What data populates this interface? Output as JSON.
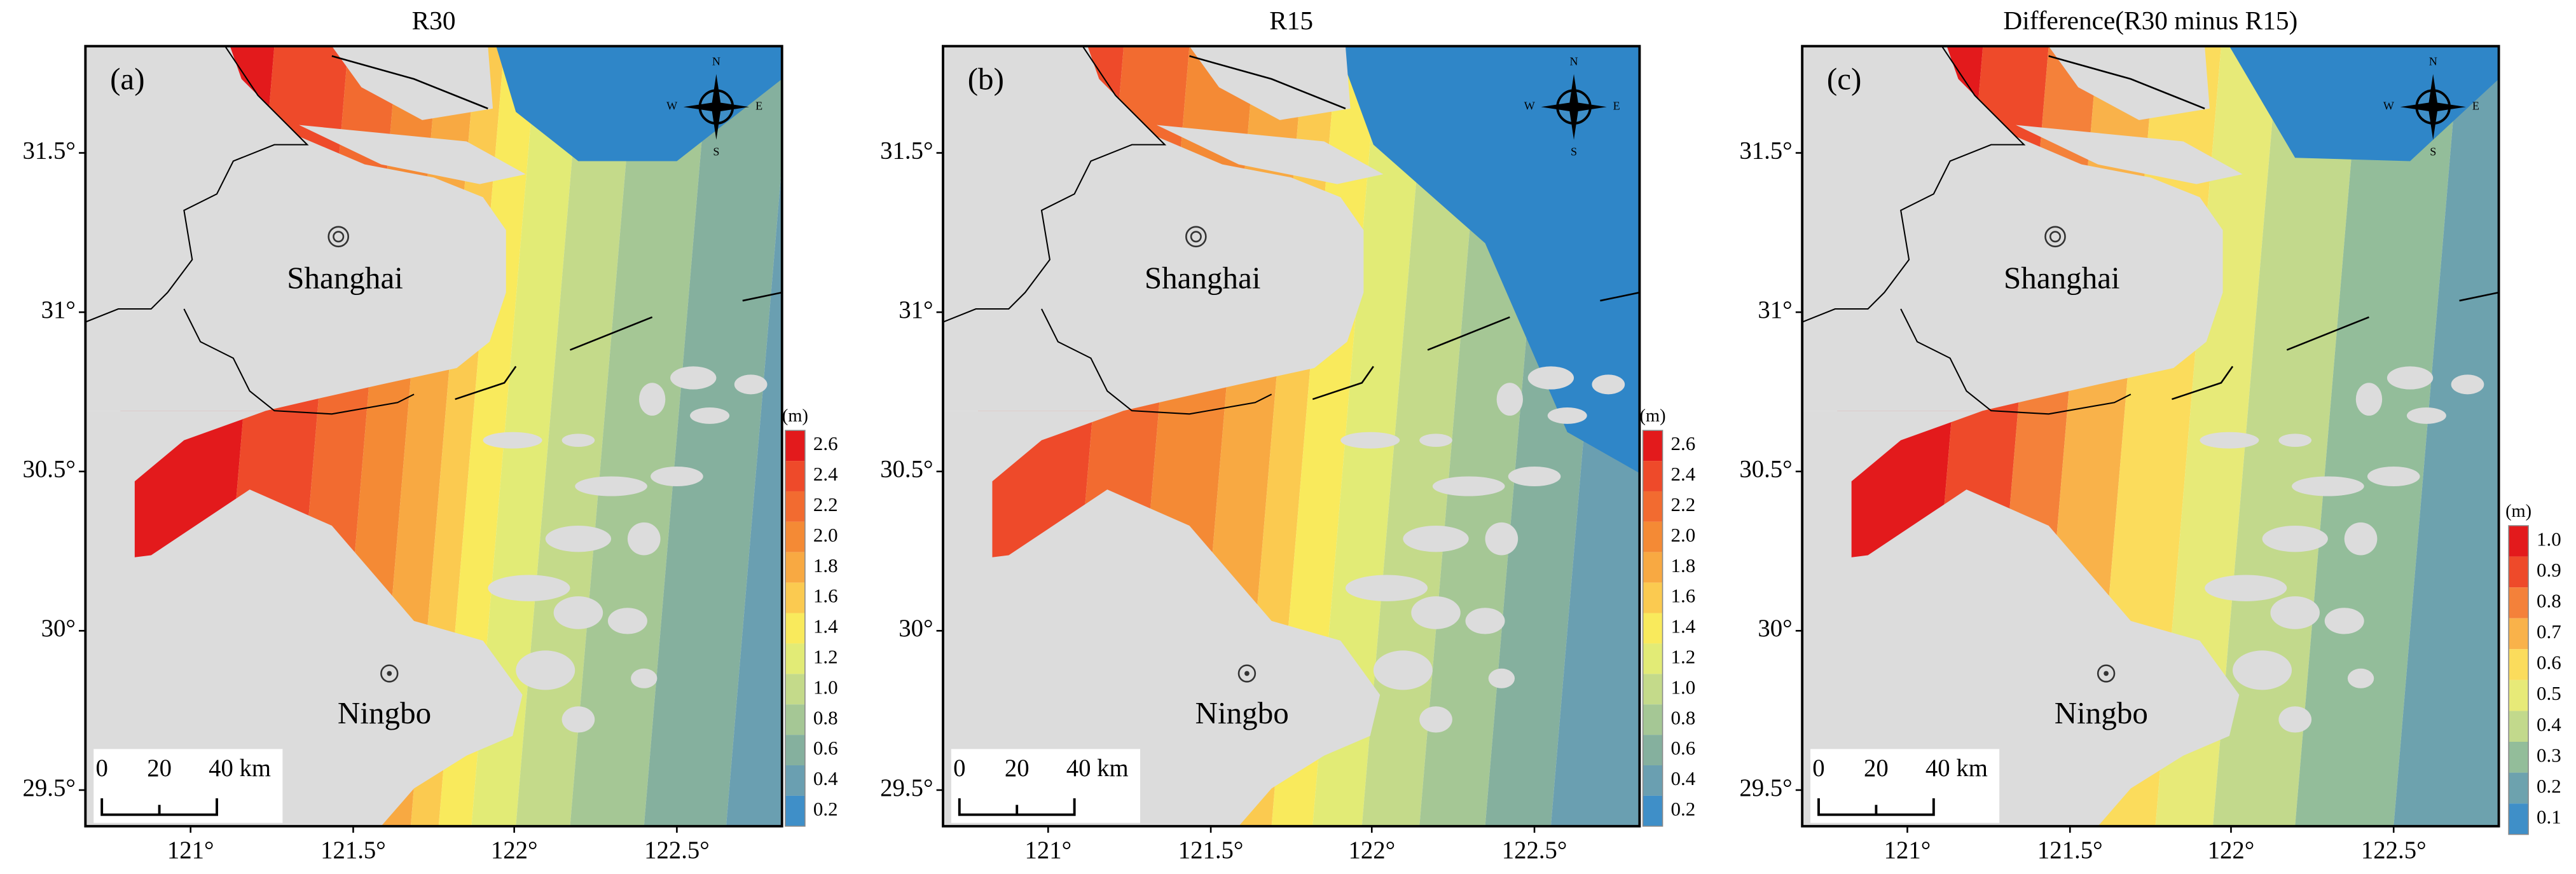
{
  "panels": [
    {
      "title": "R30",
      "label": "(a)",
      "cities": [
        "Shanghai",
        "Ningbo"
      ],
      "scale_bar": [
        "0",
        "20",
        "40 km"
      ],
      "compass": [
        "N",
        "S",
        "E",
        "W"
      ],
      "colorbar": {
        "unit": "(m)",
        "labels": [
          "2.6",
          "2.4",
          "2.2",
          "2.0",
          "1.8",
          "1.6",
          "1.4",
          "1.2",
          "1.0",
          "0.8",
          "0.6",
          "0.4",
          "0.2"
        ]
      }
    },
    {
      "title": "R15",
      "label": "(b)",
      "cities": [
        "Shanghai",
        "Ningbo"
      ],
      "scale_bar": [
        "0",
        "20",
        "40 km"
      ],
      "compass": [
        "N",
        "S",
        "E",
        "W"
      ],
      "colorbar": {
        "unit": "(m)",
        "labels": [
          "2.6",
          "2.4",
          "2.2",
          "2.0",
          "1.8",
          "1.6",
          "1.4",
          "1.2",
          "1.0",
          "0.8",
          "0.6",
          "0.4",
          "0.2"
        ]
      }
    },
    {
      "title": "Difference(R30 minus R15)",
      "label": "(c)",
      "cities": [
        "Shanghai",
        "Ningbo"
      ],
      "scale_bar": [
        "0",
        "20",
        "40 km"
      ],
      "compass": [
        "N",
        "S",
        "E",
        "W"
      ],
      "colorbar": {
        "unit": "(m)",
        "labels": [
          "1.0",
          "0.9",
          "0.8",
          "0.7",
          "0.6",
          "0.5",
          "0.4",
          "0.3",
          "0.2",
          "0.1"
        ]
      }
    }
  ],
  "y_ticks": [
    "31.5°",
    "31°",
    "30.5°",
    "30°",
    "29.5°"
  ],
  "x_ticks": [
    "121°",
    "121.5°",
    "122°",
    "122.5°"
  ]
}
